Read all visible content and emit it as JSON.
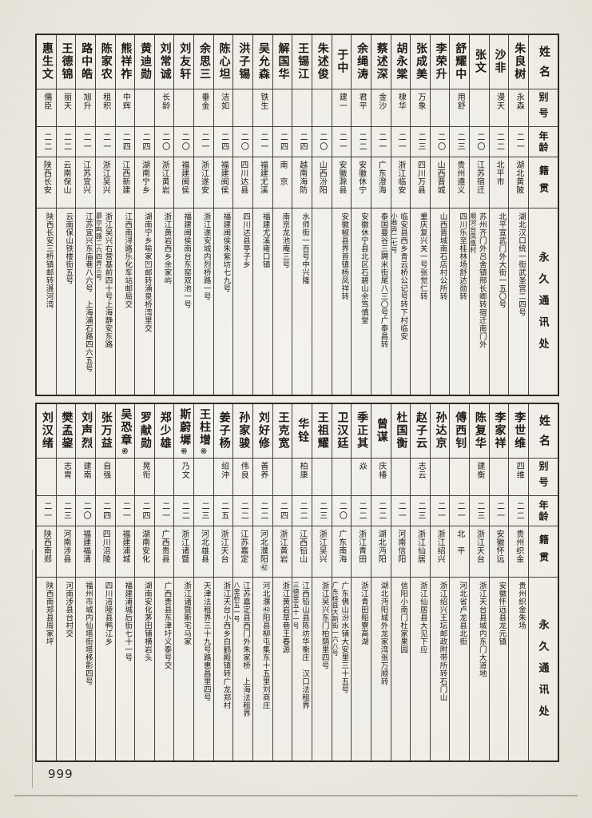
{
  "colors": {
    "paper": "#edebe3",
    "ink": "#1d1a15",
    "rule": "#45423b"
  },
  "page": {
    "number": "999"
  },
  "headers": {
    "name": "姓名",
    "alias": "别号",
    "age": "年龄",
    "place": "籍贯",
    "addr": "永久通讯处"
  },
  "tables": [
    {
      "entries": [
        {
          "name": "朱良树",
          "note": "",
          "alias": "永森",
          "age": "二一",
          "place": "湖北黄陂",
          "addr": [
            "湖北汉口统一街武圣宫二四号"
          ]
        },
        {
          "name": "沙非",
          "note": "",
          "alias": "漫天",
          "age": "二二",
          "place": "北平市",
          "addr": [
            "北平宣武门外大街一五〇号"
          ]
        },
        {
          "name": "张文",
          "note": "",
          "alias": "",
          "age": "二〇",
          "place": "江苏宿迁",
          "addr": [
            "苏州齐门外吕舍镇邢长卿转宿迁南门外",
            "顺河台凤凰村"
          ]
        },
        {
          "name": "舒耀中",
          "note": "",
          "alias": "用舒",
          "age": "二三",
          "place": "贵州遵义",
          "addr": [
            "四川乐至桂林场舒达勋转"
          ]
        },
        {
          "name": "李荣升",
          "note": "",
          "alias": "",
          "age": "二〇",
          "place": "山西晋城",
          "addr": [
            "山西晋城南石店村公所转"
          ]
        },
        {
          "name": "张成美",
          "note": "",
          "alias": "万象",
          "age": "二三",
          "place": "四川万县",
          "addr": [
            "重庆复兴关一号张觉仁转"
          ]
        },
        {
          "name": "胡永棠",
          "note": "",
          "alias": "棣华",
          "age": "二一",
          "place": "浙江临安",
          "addr": [
            "临安县西乡青云桥公记号转下村临安",
            "小巷弄二七号"
          ]
        },
        {
          "name": "蔡述深",
          "note": "",
          "alias": "金沙",
          "age": "二一",
          "place": "广东澄海",
          "addr": [
            "泰国曼谷三聘米街尾八三〇号广泰昌转"
          ]
        },
        {
          "name": "余绳涛",
          "note": "",
          "alias": "君平",
          "age": "二二",
          "place": "安徽休宁",
          "addr": [
            "安徽休宁县北区石碧山余笃慎堂"
          ]
        },
        {
          "name": "于中",
          "note": "",
          "alias": "建一",
          "age": "二一",
          "place": "安徽滁县",
          "addr": [
            "安徽椒县界首镇杨凤祥转"
          ]
        },
        {
          "name": "朱述俊",
          "note": "",
          "alias": "",
          "age": "二〇",
          "place": "山西汾阳",
          "addr": []
        },
        {
          "name": "王锡江",
          "note": "",
          "alias": "",
          "age": "二四",
          "place": "越南海防",
          "addr": [
            "水师街一百号中兴隆"
          ]
        },
        {
          "name": "解国华",
          "note": "",
          "alias": "",
          "age": "二四",
          "place": "南　京",
          "addr": [
            "南京龙池庵三号"
          ]
        },
        {
          "name": "吴允森",
          "note": "",
          "alias": "铁生",
          "age": "二一",
          "place": "福建尤溪",
          "addr": [
            "福建尤溪雍口镇"
          ]
        },
        {
          "name": "洪子锡",
          "note": "",
          "alias": "",
          "age": "二〇",
          "place": "四川达县",
          "addr": [
            "四川达县亭子乡"
          ]
        },
        {
          "name": "陈心坦",
          "note": "",
          "alias": "洁如",
          "age": "二四",
          "place": "福建闽侯",
          "addr": [
            "福建闽侯朱紫坊七九号"
          ]
        },
        {
          "name": "余思三",
          "note": "",
          "alias": "垂金",
          "age": "二一",
          "place": "浙江遂安",
          "addr": [
            "浙江遂安城内烈桥路一号"
          ]
        },
        {
          "name": "刘友轩",
          "note": "",
          "alias": "",
          "age": "二〇",
          "place": "福建闽侯",
          "addr": [
            "福建闽侯南台东窑双池一号"
          ]
        },
        {
          "name": "刘常诚",
          "note": "",
          "alias": "长龄",
          "age": "二〇",
          "place": "浙江黄岩",
          "addr": [
            "浙江黄岩西乡余家屿"
          ]
        },
        {
          "name": "黄迪勋",
          "note": "",
          "alias": "",
          "age": "二四",
          "place": "湖南宁乡",
          "addr": [
            "湖南宁乡喻家凹邮转涌泉桥湾里交"
          ]
        },
        {
          "name": "熊祥祚",
          "note": "",
          "alias": "中辉",
          "age": "二四",
          "place": "江西新建",
          "addr": [
            "江西南浔路乐化车站邮局交"
          ]
        },
        {
          "name": "陈家农",
          "note": "",
          "alias": "租积",
          "age": "二一",
          "place": "浙江吴兴",
          "addr": [
            "浙江吴兴右营基前四十号上海静安东路",
            "慕尔鸣路二六四弄三号"
          ]
        },
        {
          "name": "路中皓",
          "note": "",
          "alias": "旭升",
          "age": "二一",
          "place": "江苏宜兴",
          "addr": [
            "江苏宜兴东庙巷八六号　上海浦石路四六五号"
          ]
        },
        {
          "name": "王德锦",
          "note": "",
          "alias": "丽天",
          "age": "二二",
          "place": "云南保山",
          "addr": [
            "云南保山铁楼街五号"
          ]
        },
        {
          "name": "惠生文",
          "note": "",
          "alias": "儒臣",
          "age": "二二",
          "place": "陕西长安",
          "addr": [
            "陕西长安三桥镇邮转滠河湾"
          ]
        }
      ]
    },
    {
      "entries": [
        {
          "name": "李世维",
          "note": "",
          "alias": "四维",
          "age": "二二",
          "place": "贵州织金",
          "addr": [
            "贵州织金朱场"
          ]
        },
        {
          "name": "李家祥",
          "note": "",
          "alias": "",
          "age": "二一",
          "place": "安徽怀远",
          "addr": [
            "安徽怀远县龙元镇"
          ]
        },
        {
          "name": "陈复华",
          "note": "",
          "alias": "建衡",
          "age": "二三",
          "place": "浙江天台",
          "addr": [
            "浙江天台县城内东门大道地"
          ]
        },
        {
          "name": "傅西钊",
          "note": "",
          "alias": "",
          "age": "二一",
          "place": "北　平",
          "addr": [
            "河北省卢龙县北街"
          ]
        },
        {
          "name": "孙达京",
          "note": "",
          "alias": "",
          "age": "二一",
          "place": "浙江绍兴",
          "addr": [
            "浙江绍兴王坛邮政附带所转石门山"
          ]
        },
        {
          "name": "赵子云",
          "note": "",
          "alias": "志云",
          "age": "二三",
          "place": "浙江仙居",
          "addr": [
            "浙江仙居县大见下应"
          ]
        },
        {
          "name": "杜国衡",
          "note": "",
          "alias": "",
          "age": "二一",
          "place": "河南信阳",
          "addr": [
            "信阳小南门杜家果园"
          ]
        },
        {
          "name": "曾谋",
          "note": "",
          "alias": "庆椿",
          "age": "二二",
          "place": "湖北沔阳",
          "addr": [
            "湖北沔阳城外龙家湾张万顺转"
          ]
        },
        {
          "name": "季正其",
          "note": "",
          "alias": "焱",
          "age": "二二",
          "place": "浙江青田",
          "addr": [
            "浙江青田船寮高湖"
          ]
        },
        {
          "name": "卫汉廷",
          "note": "",
          "alias": "",
          "age": "二〇",
          "place": "广东南海",
          "addr": [
            "广东佛山汾水铺大安里三十五号",
            "广东桂县大新街一六八号"
          ]
        },
        {
          "name": "王祖耀",
          "note": "",
          "alias": "",
          "age": "二三",
          "place": "浙江吴兴",
          "addr": [
            "浙江吴兴东门柏荫里四号"
          ]
        },
        {
          "name": "华铨",
          "note": "",
          "alias": "柏康",
          "age": "二二",
          "place": "江西铅山",
          "addr": [
            "江西铅山县陈坊华衡庄　汉口法租界",
            "三德里五十一号"
          ]
        },
        {
          "name": "王克宽",
          "note": "",
          "alias": "",
          "age": "二四",
          "place": "浙江黄岩",
          "addr": [
            "浙江黄岩草巷王春源"
          ]
        },
        {
          "name": "刘好修",
          "note": "",
          "alias": "善养",
          "age": "二二",
          "place": "河北濮阳㊷",
          "addr": [
            "河北濮㊷阳县柳屯集东十五里刘商庄"
          ]
        },
        {
          "name": "孙家骏",
          "note": "",
          "alias": "伟良",
          "age": "二二",
          "place": "江苏嘉定",
          "addr": [
            "江苏嘉定县西门外朱家桥　上海法租界",
            "八里桥五一号"
          ]
        },
        {
          "name": "姜子杨",
          "note": "",
          "alias": "绍沖",
          "age": "二五",
          "place": "浙江天台",
          "addr": [
            "浙江天台小西乡白鹤殿镇转广龙郑村"
          ]
        },
        {
          "name": "王柱增",
          "note": "㊸",
          "alias": "",
          "age": "二三",
          "place": "河北雄县",
          "addr": [
            "天津法租界三十九号路惠昌里四号"
          ]
        },
        {
          "name": "斯蔚墀",
          "note": "㊹",
          "alias": "乃文",
          "age": "二二",
          "place": "浙江诸暨",
          "addr": [
            "浙江诸暨斯宅马家"
          ]
        },
        {
          "name": "郑少雄",
          "note": "",
          "alias": "",
          "age": "二一",
          "place": "广西贵县",
          "addr": [
            "广西贵县东津圩义泰号交"
          ]
        },
        {
          "name": "罗献勋",
          "note": "",
          "alias": "晃衔",
          "age": "二四",
          "place": "湖南安化",
          "addr": [
            "湖南安化茅田铺横岩头"
          ]
        },
        {
          "name": "吴恐章",
          "note": "㊺",
          "alias": "",
          "age": "二一",
          "place": "福建浦城",
          "addr": [
            "福建浦城后街七十一号"
          ]
        },
        {
          "name": "张万益",
          "note": "",
          "alias": "自强",
          "age": "二四",
          "place": "四川涪陵",
          "addr": [
            "四川涪陵县鸭江乡"
          ]
        },
        {
          "name": "刘声烈",
          "note": "",
          "alias": "建南",
          "age": "二〇",
          "place": "福建福清",
          "addr": [
            "福州市城内仙塔街塔移影四号"
          ]
        },
        {
          "name": "樊孟鋆",
          "note": "",
          "alias": "志胄",
          "age": "二三",
          "place": "河南涉县",
          "addr": [
            "河南涉县台村交"
          ]
        },
        {
          "name": "刘汉绪",
          "note": "",
          "alias": "",
          "age": "二一",
          "place": "陕西南郑",
          "addr": [
            "陕西南郑县周家坪"
          ]
        }
      ]
    }
  ]
}
